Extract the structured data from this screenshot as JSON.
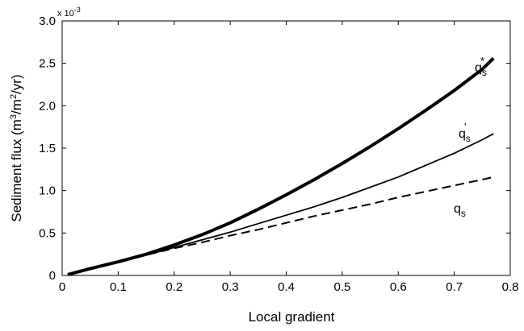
{
  "chart_data": {
    "type": "line",
    "title": "",
    "xlabel": "Local gradient",
    "ylabel": "Sediment flux (m3/m2/yr)",
    "y_multiplier": "x 10-3",
    "xlim": [
      0,
      0.8
    ],
    "ylim": [
      0,
      3.0
    ],
    "grid": false,
    "x_ticks": [
      0,
      0.1,
      0.2,
      0.3,
      0.4,
      0.5,
      0.6,
      0.7,
      0.8
    ],
    "x_tick_labels": [
      "0",
      "0.1",
      "0.2",
      "0.3",
      "0.4",
      "0.5",
      "0.6",
      "0.7",
      "0.8"
    ],
    "y_ticks": [
      0,
      0.5,
      1.0,
      1.5,
      2.0,
      2.5,
      3.0
    ],
    "y_tick_labels": [
      "0",
      "0.5",
      "1.0",
      "1.5",
      "2.0",
      "2.5",
      "3.0"
    ],
    "series": [
      {
        "name": "qs*",
        "label_base": "q",
        "label_sub": "s",
        "label_sup": "*",
        "style": "thick-solid",
        "x": [
          0.01,
          0.05,
          0.1,
          0.15,
          0.2,
          0.25,
          0.3,
          0.35,
          0.4,
          0.45,
          0.5,
          0.55,
          0.6,
          0.65,
          0.7,
          0.75,
          0.77
        ],
        "y": [
          0.01,
          0.08,
          0.16,
          0.25,
          0.36,
          0.48,
          0.62,
          0.78,
          0.95,
          1.13,
          1.32,
          1.52,
          1.73,
          1.95,
          2.18,
          2.43,
          2.56
        ]
      },
      {
        "name": "qs'",
        "label_base": "q",
        "label_sub": "s",
        "label_sup": "’",
        "style": "thin-solid",
        "x": [
          0.01,
          0.05,
          0.1,
          0.15,
          0.2,
          0.25,
          0.3,
          0.35,
          0.4,
          0.45,
          0.5,
          0.55,
          0.6,
          0.65,
          0.7,
          0.75,
          0.77
        ],
        "y": [
          0.01,
          0.08,
          0.16,
          0.24,
          0.33,
          0.42,
          0.51,
          0.61,
          0.71,
          0.81,
          0.92,
          1.04,
          1.16,
          1.3,
          1.44,
          1.6,
          1.67
        ]
      },
      {
        "name": "qs",
        "label_base": "q",
        "label_sub": "s",
        "label_sup": "",
        "style": "dashed",
        "x": [
          0.01,
          0.05,
          0.1,
          0.15,
          0.2,
          0.25,
          0.3,
          0.35,
          0.4,
          0.45,
          0.5,
          0.55,
          0.6,
          0.65,
          0.7,
          0.75,
          0.77
        ],
        "y": [
          0.01,
          0.08,
          0.16,
          0.24,
          0.32,
          0.39,
          0.47,
          0.54,
          0.62,
          0.7,
          0.77,
          0.84,
          0.92,
          0.99,
          1.06,
          1.13,
          1.16
        ]
      }
    ]
  }
}
